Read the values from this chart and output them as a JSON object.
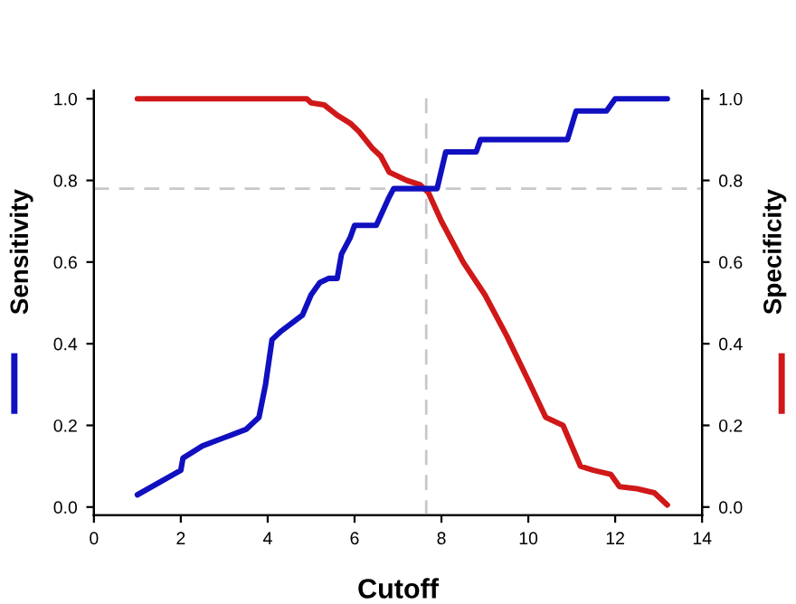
{
  "chart_data": {
    "type": "line",
    "xlabel": "Cutoff",
    "ylabel": "Sensitivity",
    "y2label": "Specificity",
    "xlim": [
      0,
      14
    ],
    "xticks": [
      0,
      2,
      4,
      6,
      8,
      10,
      12,
      14
    ],
    "ylim": [
      -0.02,
      1.02
    ],
    "yticks": [
      {
        "value": 0,
        "label": "0.0"
      },
      0.2,
      0.4,
      0.6,
      0.8,
      {
        "value": 1,
        "label": "1.0"
      }
    ],
    "y2lim": [
      -0.02,
      1.02
    ],
    "y2ticks": [
      {
        "value": 0,
        "label": "0.0"
      },
      0.2,
      0.4,
      0.6,
      0.8,
      {
        "value": 1,
        "label": "1.0"
      }
    ],
    "grid": false,
    "legend": false,
    "marker": "none",
    "line_style": "solid",
    "ref_lines": [
      {
        "axis": "x",
        "value": 7.65,
        "color": "#c8c8c8",
        "line_style": "dashed"
      },
      {
        "axis": "y",
        "value": 0.78,
        "color": "#c8c8c8",
        "line_style": "dashed"
      }
    ],
    "series": [
      {
        "color": "#1010c0",
        "x": [
          1,
          2,
          2.05,
          2.5,
          3,
          3.5,
          3.8,
          3.95,
          4.1,
          4.3,
          4.8,
          5.0,
          5.2,
          5.4,
          5.6,
          5.7,
          5.9,
          6.0,
          6.5,
          6.8,
          6.9,
          7.9,
          8.1,
          8.8,
          8.9,
          10.9,
          11.1,
          11.8,
          12.0,
          13.2
        ],
        "values": [
          0.03,
          0.09,
          0.12,
          0.15,
          0.17,
          0.19,
          0.22,
          0.3,
          0.41,
          0.43,
          0.47,
          0.52,
          0.55,
          0.56,
          0.56,
          0.62,
          0.66,
          0.69,
          0.69,
          0.76,
          0.78,
          0.78,
          0.87,
          0.87,
          0.9,
          0.9,
          0.97,
          0.97,
          1.0,
          1.0
        ]
      },
      {
        "color": "#d01818",
        "axis": "y2",
        "x": [
          1,
          4.9,
          5.0,
          5.3,
          5.6,
          5.9,
          6.1,
          6.4,
          6.6,
          6.8,
          7.2,
          7.5,
          7.7,
          8.0,
          8.5,
          9.0,
          9.5,
          10.0,
          10.4,
          10.8,
          11.2,
          11.5,
          11.9,
          12.1,
          12.5,
          12.9,
          13.2
        ],
        "values": [
          1.0,
          1.0,
          0.99,
          0.985,
          0.96,
          0.94,
          0.92,
          0.88,
          0.86,
          0.82,
          0.8,
          0.79,
          0.77,
          0.7,
          0.6,
          0.52,
          0.42,
          0.31,
          0.22,
          0.2,
          0.1,
          0.09,
          0.08,
          0.05,
          0.045,
          0.035,
          0.005
        ]
      }
    ]
  }
}
